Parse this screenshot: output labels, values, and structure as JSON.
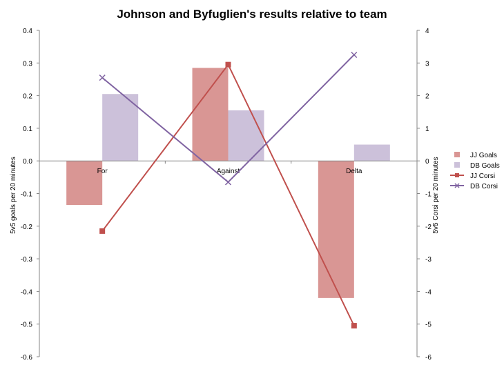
{
  "chart_data": {
    "type": "bar",
    "title": "Johnson and Byfuglien's results relative to team",
    "categories": [
      "For",
      "Against",
      "Delta"
    ],
    "ylabel": "5v5 goals per 20 minutes",
    "y2label": "5v5 Corsi per 20 minutes",
    "ylim": [
      -0.6,
      0.4
    ],
    "y2lim": [
      -6,
      4
    ],
    "yticks": [
      "0.4",
      "0.3",
      "0.2",
      "0.1",
      "0.0",
      "-0.1",
      "-0.2",
      "-0.3",
      "-0.4",
      "-0.5",
      "-0.6"
    ],
    "y2ticks": [
      "4",
      "3",
      "2",
      "1",
      "0",
      "-1",
      "-2",
      "-3",
      "-4",
      "-5",
      "-6"
    ],
    "grid": false,
    "legend_position": "right",
    "series": [
      {
        "name": "JJ Goals",
        "kind": "bar",
        "axis": "left",
        "color": "#d99694",
        "values": [
          -0.135,
          0.285,
          -0.42
        ]
      },
      {
        "name": "DB Goals",
        "kind": "bar",
        "axis": "left",
        "color": "#ccc1da",
        "values": [
          0.205,
          0.155,
          0.05
        ]
      },
      {
        "name": "JJ Corsi",
        "kind": "line",
        "axis": "right",
        "color": "#c0504d",
        "marker": "square",
        "values": [
          -2.15,
          2.95,
          -5.05
        ]
      },
      {
        "name": "DB Corsi",
        "kind": "line",
        "axis": "right",
        "color": "#8064a2",
        "marker": "x",
        "values": [
          2.55,
          -0.65,
          3.25
        ]
      }
    ]
  }
}
